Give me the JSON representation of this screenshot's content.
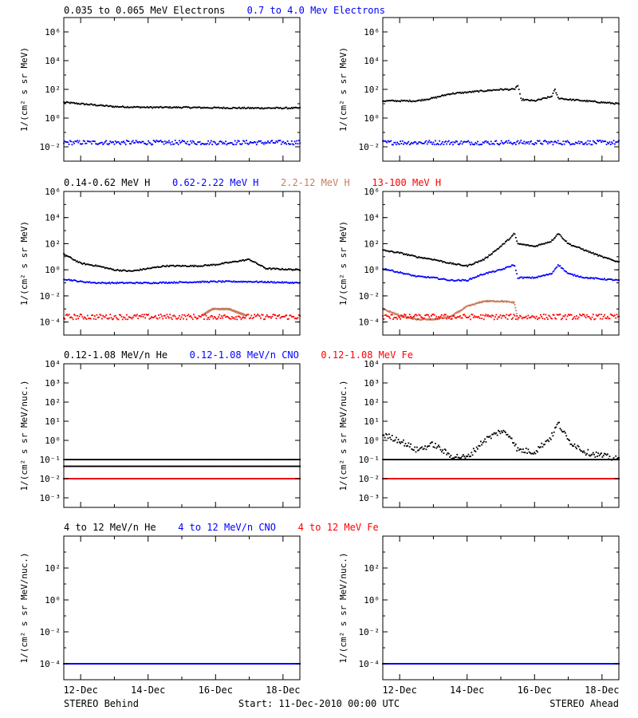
{
  "figure": {
    "footer": {
      "left": "STEREO Behind",
      "center": "Start: 11-Dec-2010 00:00 UTC",
      "right": "STEREO Ahead"
    },
    "time_ticks": [
      "12-Dec",
      "14-Dec",
      "16-Dec",
      "18-Dec"
    ],
    "time_range_days": [
      11.5,
      18.5
    ]
  },
  "chart_data": [
    {
      "id": "behind-electrons",
      "type": "scatter",
      "spacecraft": "STEREO Behind",
      "legend": [
        {
          "text": "0.035 to 0.065 MeV Electrons",
          "color": "#000000"
        },
        {
          "text": "0.7 to 4.0 Mev Electrons",
          "color": "#0000ff"
        }
      ],
      "ylabel": "1/(cm² s sr MeV)",
      "yscale": "log",
      "yexp_range": [
        -3,
        7
      ],
      "yticks": [
        "10⁻²",
        "10⁰",
        "10²",
        "10⁴",
        "10⁶"
      ],
      "series": [
        {
          "name": "0.035 to 0.065 MeV Electrons",
          "color": "#000000",
          "spread": 0.05,
          "x": [
            11.5,
            12.0,
            13.0,
            14.0,
            15.0,
            16.0,
            17.0,
            18.5
          ],
          "y": [
            1.1,
            1.0,
            0.8,
            0.75,
            0.75,
            0.72,
            0.7,
            0.7
          ]
        },
        {
          "name": "0.7 to 4.0 Mev Electrons",
          "color": "#0000ff",
          "spread": 0.15,
          "x": [
            11.5,
            18.5
          ],
          "y": [
            -1.7,
            -1.7
          ]
        }
      ]
    },
    {
      "id": "ahead-electrons",
      "type": "scatter",
      "spacecraft": "STEREO Ahead",
      "ylabel": "1/(cm² s sr MeV)",
      "yscale": "log",
      "yexp_range": [
        -3,
        7
      ],
      "yticks": [
        "10⁻²",
        "10⁰",
        "10²",
        "10⁴",
        "10⁶"
      ],
      "series": [
        {
          "name": "0.035 to 0.065 MeV Electrons",
          "color": "#000000",
          "spread": 0.05,
          "x": [
            11.5,
            12.5,
            13.0,
            13.5,
            14.0,
            14.5,
            15.0,
            15.4,
            15.5,
            15.6,
            16.0,
            16.5,
            16.6,
            16.7,
            17.0,
            17.5,
            18.5
          ],
          "y": [
            1.2,
            1.2,
            1.4,
            1.7,
            1.8,
            1.9,
            2.0,
            2.0,
            2.3,
            1.3,
            1.2,
            1.5,
            2.0,
            1.4,
            1.3,
            1.2,
            1.0
          ]
        },
        {
          "name": "0.7 to 4.0 Mev Electrons",
          "color": "#0000ff",
          "spread": 0.15,
          "x": [
            11.5,
            18.5
          ],
          "y": [
            -1.7,
            -1.7
          ]
        }
      ]
    },
    {
      "id": "behind-protons",
      "type": "scatter",
      "spacecraft": "STEREO Behind",
      "legend": [
        {
          "text": "0.14-0.62 MeV H",
          "color": "#000000"
        },
        {
          "text": "0.62-2.22 MeV H",
          "color": "#0000ff"
        },
        {
          "text": "2.2-12 MeV H",
          "color": "#c87e60"
        },
        {
          "text": "13-100 MeV H",
          "color": "#ff0000"
        }
      ],
      "ylabel": "1/(cm² s sr MeV)",
      "yscale": "log",
      "yexp_range": [
        -5,
        6
      ],
      "yticks": [
        "10⁻⁴",
        "10⁻²",
        "10⁰",
        "10²",
        "10⁴",
        "10⁶"
      ],
      "series": [
        {
          "name": "0.14-0.62 MeV H",
          "color": "#000000",
          "spread": 0.05,
          "x": [
            11.5,
            12.0,
            12.5,
            13.0,
            13.5,
            14.0,
            14.5,
            15.0,
            15.5,
            16.0,
            16.5,
            17.0,
            17.5,
            18.5
          ],
          "y": [
            1.2,
            0.5,
            0.3,
            0.0,
            -0.1,
            0.1,
            0.3,
            0.3,
            0.3,
            0.4,
            0.6,
            0.8,
            0.1,
            0.0
          ]
        },
        {
          "name": "0.62-2.22 MeV H",
          "color": "#0000ff",
          "spread": 0.05,
          "x": [
            11.5,
            12.0,
            12.5,
            14.0,
            16.0,
            17.0,
            18.5
          ],
          "y": [
            -0.7,
            -0.9,
            -1.0,
            -1.0,
            -0.9,
            -0.9,
            -1.0
          ]
        },
        {
          "name": "2.2-12 MeV H",
          "color": "#c87e60",
          "spread": 0.05,
          "x": [
            15.6,
            15.9,
            16.4,
            16.9
          ],
          "y": [
            -3.5,
            -3.0,
            -3.0,
            -3.5
          ]
        },
        {
          "name": "13-100 MeV H",
          "color": "#ff0000",
          "spread": 0.2,
          "x": [
            11.5,
            18.5
          ],
          "y": [
            -3.6,
            -3.6
          ]
        }
      ]
    },
    {
      "id": "ahead-protons",
      "type": "scatter",
      "spacecraft": "STEREO Ahead",
      "ylabel": "1/(cm² s sr MeV)",
      "yscale": "log",
      "yexp_range": [
        -5,
        6
      ],
      "yticks": [
        "10⁻⁴",
        "10⁻²",
        "10⁰",
        "10²",
        "10⁴",
        "10⁶"
      ],
      "series": [
        {
          "name": "0.14-0.62 MeV H",
          "color": "#000000",
          "spread": 0.05,
          "x": [
            11.5,
            12.0,
            12.5,
            13.0,
            13.5,
            14.0,
            14.5,
            15.0,
            15.3,
            15.4,
            15.5,
            16.0,
            16.5,
            16.7,
            17.0,
            17.5,
            18.0,
            18.5
          ],
          "y": [
            1.5,
            1.3,
            1.0,
            0.8,
            0.5,
            0.3,
            0.8,
            1.8,
            2.5,
            2.8,
            2.0,
            1.8,
            2.2,
            2.8,
            2.0,
            1.5,
            1.0,
            0.6
          ]
        },
        {
          "name": "0.62-2.22 MeV H",
          "color": "#0000ff",
          "spread": 0.05,
          "x": [
            11.5,
            12.0,
            12.5,
            13.0,
            13.5,
            14.0,
            14.5,
            15.0,
            15.4,
            15.5,
            16.0,
            16.5,
            16.7,
            17.0,
            17.5,
            18.5
          ],
          "y": [
            0.1,
            -0.2,
            -0.5,
            -0.6,
            -0.8,
            -0.8,
            -0.3,
            0.0,
            0.4,
            -0.6,
            -0.6,
            -0.3,
            0.4,
            -0.3,
            -0.6,
            -0.8
          ]
        },
        {
          "name": "2.2-12 MeV H",
          "color": "#c87e60",
          "spread": 0.05,
          "x": [
            11.5,
            12.0,
            12.5,
            13.0,
            13.5,
            14.0,
            14.5,
            15.0,
            15.4,
            15.5
          ],
          "y": [
            -3.0,
            -3.5,
            -3.8,
            -3.8,
            -3.6,
            -2.8,
            -2.4,
            -2.4,
            -2.5,
            -3.8
          ]
        },
        {
          "name": "13-100 MeV H",
          "color": "#ff0000",
          "spread": 0.2,
          "x": [
            11.5,
            18.5
          ],
          "y": [
            -3.6,
            -3.6
          ]
        }
      ]
    },
    {
      "id": "behind-suprathermal",
      "type": "scatter",
      "spacecraft": "STEREO Behind",
      "legend": [
        {
          "text": "0.12-1.08 MeV/n He",
          "color": "#000000"
        },
        {
          "text": "0.12-1.08 MeV/n CNO",
          "color": "#0000ff"
        },
        {
          "text": "0.12-1.08 MeV Fe",
          "color": "#ff0000"
        }
      ],
      "ylabel": "1/(cm² s sr MeV/nuc.)",
      "yscale": "log",
      "yexp_range": [
        -3.5,
        4
      ],
      "yticks": [
        "10⁻³",
        "10⁻²",
        "10⁻¹",
        "10⁰",
        "10¹",
        "10²",
        "10³",
        "10⁴"
      ],
      "series": [
        {
          "name": "0.12-1.08 MeV/n He",
          "color": "#000000",
          "spread": 0.0,
          "x": [
            11.5,
            18.5
          ],
          "y": [
            -1.0,
            -1.0
          ]
        },
        {
          "name": "0.12-1.08 MeV/n He background",
          "color": "#000000",
          "spread": 0.0,
          "x": [
            11.5,
            18.5
          ],
          "y": [
            -1.35,
            -1.35
          ]
        },
        {
          "name": "0.12-1.08 MeV/n CNO",
          "color": "#0000ff",
          "spread": 0.0,
          "x": [
            11.5,
            18.5
          ],
          "y": [
            -2.0,
            -2.0
          ]
        },
        {
          "name": "0.12-1.08 MeV Fe",
          "color": "#ff0000",
          "spread": 0.0,
          "x": [
            11.5,
            18.5
          ],
          "y": [
            -2.0,
            -2.0
          ]
        }
      ]
    },
    {
      "id": "ahead-suprathermal",
      "type": "scatter",
      "spacecraft": "STEREO Ahead",
      "ylabel": "1/(cm² s sr MeV/nuc.)",
      "yscale": "log",
      "yexp_range": [
        -3.5,
        4
      ],
      "yticks": [
        "10⁻³",
        "10⁻²",
        "10⁻¹",
        "10⁰",
        "10¹",
        "10²",
        "10³",
        "10⁴"
      ],
      "series": [
        {
          "name": "0.12-1.08 MeV/n He",
          "color": "#000000",
          "spread": 0.15,
          "x": [
            11.5,
            12.0,
            12.5,
            13.0,
            13.5,
            14.0,
            14.5,
            15.0,
            15.3,
            15.5,
            16.0,
            16.5,
            16.7,
            17.0,
            17.5,
            18.0,
            18.5
          ],
          "y": [
            0.3,
            0.0,
            -0.5,
            -0.2,
            -0.8,
            -0.9,
            0.0,
            0.5,
            0.2,
            -0.5,
            -0.6,
            0.2,
            0.9,
            0.0,
            -0.6,
            -0.8,
            -1.0
          ]
        },
        {
          "name": "0.12-1.08 MeV/n He background",
          "color": "#000000",
          "spread": 0.0,
          "x": [
            11.5,
            18.5
          ],
          "y": [
            -1.0,
            -1.0
          ]
        },
        {
          "name": "0.12-1.08 MeV/n CNO",
          "color": "#0000ff",
          "spread": 0.0,
          "x": [
            11.5,
            18.5
          ],
          "y": [
            -2.0,
            -2.0
          ]
        },
        {
          "name": "0.12-1.08 MeV Fe",
          "color": "#ff0000",
          "spread": 0.0,
          "x": [
            11.5,
            18.5
          ],
          "y": [
            -2.0,
            -2.0
          ]
        }
      ]
    },
    {
      "id": "behind-high-energy",
      "type": "scatter",
      "spacecraft": "STEREO Behind",
      "legend": [
        {
          "text": "4 to 12 MeV/n He",
          "color": "#000000"
        },
        {
          "text": "4 to 12 MeV/n CNO",
          "color": "#0000ff"
        },
        {
          "text": "4 to 12 MeV Fe",
          "color": "#ff0000"
        }
      ],
      "ylabel": "1/(cm² s sr MeV/nuc.)",
      "yscale": "log",
      "yexp_range": [
        -5,
        4
      ],
      "yticks": [
        "10⁻⁴",
        "10⁻²",
        "10⁰",
        "10²"
      ],
      "series": [
        {
          "name": "4 to 12 MeV/n He",
          "color": "#000000",
          "spread": 0.0,
          "x": [
            11.5,
            18.5
          ],
          "y": [
            -4.0,
            -4.0
          ]
        },
        {
          "name": "4 to 12 MeV/n CNO",
          "color": "#0000ff",
          "spread": 0.0,
          "x": [
            11.5,
            18.5
          ],
          "y": [
            -4.0,
            -4.0
          ]
        }
      ]
    },
    {
      "id": "ahead-high-energy",
      "type": "scatter",
      "spacecraft": "STEREO Ahead",
      "ylabel": "1/(cm² s sr MeV/nuc.)",
      "yscale": "log",
      "yexp_range": [
        -5,
        4
      ],
      "yticks": [
        "10⁻⁴",
        "10⁻²",
        "10⁰",
        "10²"
      ],
      "series": [
        {
          "name": "4 to 12 MeV/n He",
          "color": "#000000",
          "spread": 0.0,
          "x": [
            11.5,
            18.5
          ],
          "y": [
            -4.0,
            -4.0
          ]
        },
        {
          "name": "4 to 12 MeV/n CNO",
          "color": "#0000ff",
          "spread": 0.0,
          "x": [
            11.5,
            18.5
          ],
          "y": [
            -4.0,
            -4.0
          ]
        }
      ]
    }
  ]
}
